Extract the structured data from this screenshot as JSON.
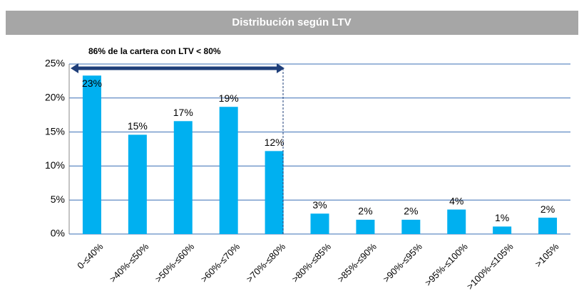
{
  "chart_data": {
    "type": "bar",
    "title": "Distribución según LTV",
    "annotation": "86% de la cartera con LTV < 80%",
    "categories": [
      "0-≤40%",
      ">40%-≤50%",
      ">50%-≤60%",
      ">60%-≤70%",
      ">70%-≤80%",
      ">80%-≤85%",
      ">85%-≤90%",
      ">90%-≤95%",
      ">95%-≤100%",
      ">100%-≤105%",
      ">105%"
    ],
    "values": [
      23.3,
      14.6,
      16.6,
      18.7,
      12.2,
      3.0,
      2.1,
      2.1,
      3.6,
      1.1,
      2.4
    ],
    "value_labels": [
      "23%",
      "15%",
      "17%",
      "19%",
      "12%",
      "3%",
      "2%",
      "2%",
      "4%",
      "1%",
      "2%"
    ],
    "color": "#00b0f0",
    "ylim": [
      0,
      25
    ],
    "yticks": [
      {
        "value": 0,
        "label": "0%"
      },
      {
        "value": 5,
        "label": "5%"
      },
      {
        "value": 10,
        "label": "10%"
      },
      {
        "value": 15,
        "label": "15%"
      },
      {
        "value": 20,
        "label": "20%"
      },
      {
        "value": 25,
        "label": "25%"
      }
    ],
    "grid": true
  }
}
